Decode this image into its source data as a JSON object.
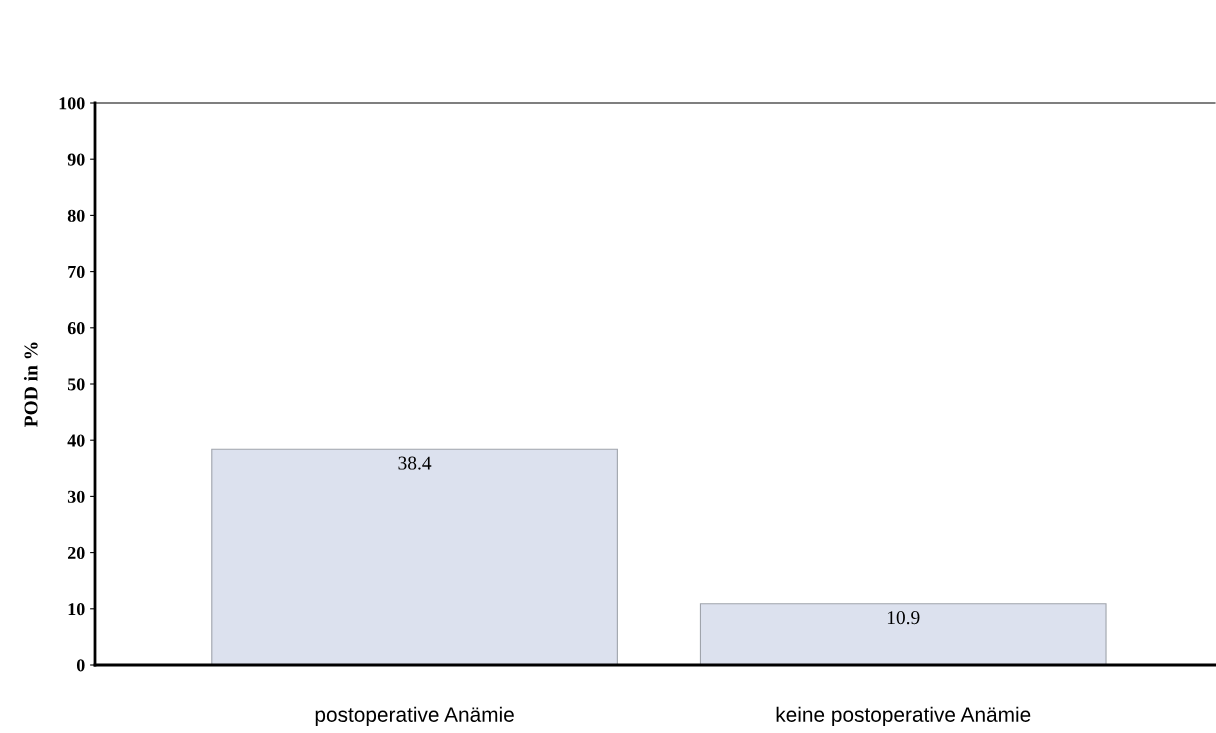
{
  "chart_data": {
    "type": "bar",
    "ylabel": "POD in %",
    "categories": [
      "postoperative Anämie",
      "keine postoperative Anämie"
    ],
    "values": [
      38.4,
      10.9
    ],
    "color": "#dce1ee",
    "ylim": [
      0,
      100
    ],
    "yticks": [
      0,
      10,
      20,
      30,
      40,
      50,
      60,
      70,
      80,
      90,
      100
    ],
    "data_labels": true,
    "grid": false,
    "legend": false
  }
}
